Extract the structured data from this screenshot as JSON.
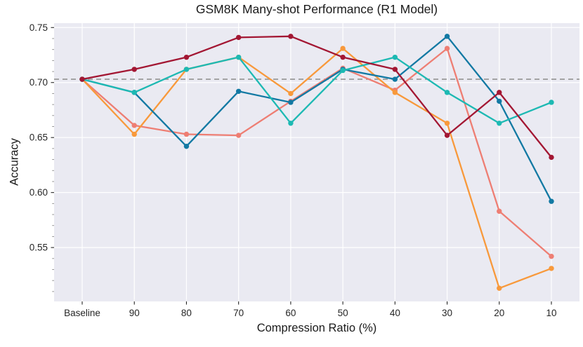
{
  "chart_data": {
    "type": "line",
    "title": "GSM8K Many-shot Performance (R1 Model)",
    "xlabel": "Compression Ratio (%)",
    "ylabel": "Accuracy",
    "categories": [
      "Baseline",
      "90",
      "80",
      "70",
      "60",
      "50",
      "40",
      "30",
      "20",
      "10"
    ],
    "y_ticks": [
      0.55,
      0.6,
      0.65,
      0.7,
      0.75
    ],
    "y_tick_labels": [
      "0.55",
      "0.60",
      "0.65",
      "0.70",
      "0.75"
    ],
    "ylim": [
      0.501,
      0.754
    ],
    "grid": true,
    "legend_position": "none",
    "plot_background": "#eaeaf2",
    "grid_color": "#ffffff",
    "baseline_reference": {
      "value": 0.703,
      "style": "dashed",
      "color": "#999999"
    },
    "series": [
      {
        "name": "salmon",
        "color": "#ee7e73",
        "values": [
          0.703,
          0.661,
          0.653,
          0.652,
          0.683,
          0.713,
          0.693,
          0.731,
          0.583,
          0.542
        ]
      },
      {
        "name": "orange",
        "color": "#f8993b",
        "values": [
          0.703,
          0.653,
          0.712,
          0.723,
          0.69,
          0.731,
          0.691,
          0.663,
          0.513,
          0.531
        ]
      },
      {
        "name": "steel-blue",
        "color": "#1279a3",
        "values": [
          0.703,
          0.691,
          0.642,
          0.692,
          0.682,
          0.712,
          0.703,
          0.742,
          0.683,
          0.592
        ]
      },
      {
        "name": "teal",
        "color": "#1db9b3",
        "values": [
          0.703,
          0.691,
          0.712,
          0.723,
          0.663,
          0.711,
          0.723,
          0.691,
          0.663,
          0.682
        ]
      },
      {
        "name": "dark-red",
        "color": "#a31733",
        "values": [
          0.703,
          0.712,
          0.723,
          0.741,
          0.742,
          0.723,
          0.712,
          0.652,
          0.691,
          0.632
        ]
      }
    ]
  }
}
